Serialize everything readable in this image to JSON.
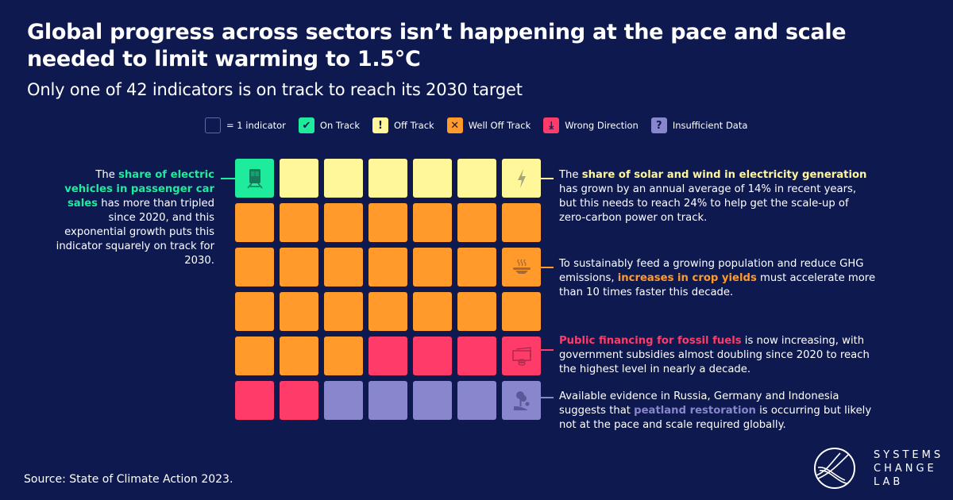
{
  "title": "Global progress across sectors isn’t happening at the pace and scale needed to limit warming to 1.5°C",
  "subtitle": "Only one of 42 indicators is on track to reach its 2030 target",
  "colors": {
    "on_track": "#1feb9c",
    "off_track": "#fff799",
    "well_off_track": "#ff9a2b",
    "wrong_direction": "#ff3b69",
    "insufficient_data": "#8886cc",
    "background": "#0e1a4f"
  },
  "legend": [
    {
      "key": "indicator",
      "label": "= 1 indicator",
      "glyph": ""
    },
    {
      "key": "on_track",
      "label": "On Track",
      "glyph": "✔"
    },
    {
      "key": "off_track",
      "label": "Off Track",
      "glyph": "!"
    },
    {
      "key": "well_off_track",
      "label": "Well Off Track",
      "glyph": "✕"
    },
    {
      "key": "wrong_direction",
      "label": "Wrong Direction",
      "glyph": "⤓"
    },
    {
      "key": "insufficient_data",
      "label": "Insufficient Data",
      "glyph": "?"
    }
  ],
  "grid": [
    [
      "on_track",
      "off_track",
      "off_track",
      "off_track",
      "off_track",
      "off_track",
      "off_track"
    ],
    [
      "well_off_track",
      "well_off_track",
      "well_off_track",
      "well_off_track",
      "well_off_track",
      "well_off_track",
      "well_off_track"
    ],
    [
      "well_off_track",
      "well_off_track",
      "well_off_track",
      "well_off_track",
      "well_off_track",
      "well_off_track",
      "well_off_track"
    ],
    [
      "well_off_track",
      "well_off_track",
      "well_off_track",
      "well_off_track",
      "well_off_track",
      "well_off_track",
      "well_off_track"
    ],
    [
      "well_off_track",
      "well_off_track",
      "well_off_track",
      "wrong_direction",
      "wrong_direction",
      "wrong_direction",
      "wrong_direction"
    ],
    [
      "wrong_direction",
      "wrong_direction",
      "insufficient_data",
      "insufficient_data",
      "insufficient_data",
      "insufficient_data",
      "insufficient_data"
    ]
  ],
  "icons": [
    {
      "row": 0,
      "col": 0,
      "name": "train-icon"
    },
    {
      "row": 0,
      "col": 6,
      "name": "lightning-icon"
    },
    {
      "row": 2,
      "col": 6,
      "name": "food-bowl-icon"
    },
    {
      "row": 4,
      "col": 6,
      "name": "money-icon"
    },
    {
      "row": 5,
      "col": 6,
      "name": "tree-icon"
    }
  ],
  "annotations": [
    {
      "side": "left",
      "status": "on_track",
      "parts": [
        {
          "t": "The "
        },
        {
          "t": "share of electric vehicles in passenger car sales",
          "hl": 1
        },
        {
          "t": " has more than tripled since 2020, and this exponential growth puts this indicator squarely on track for 2030."
        }
      ]
    },
    {
      "side": "right",
      "status": "off_track",
      "parts": [
        {
          "t": "The "
        },
        {
          "t": "share of solar and wind in electricity generation",
          "hl": 1
        },
        {
          "t": " has grown by an annual average of 14% in recent years, but this needs to reach 24% to help get the scale-up of zero-carbon power on track."
        }
      ]
    },
    {
      "side": "right",
      "status": "well_off_track",
      "parts": [
        {
          "t": "To sustainably feed a growing population and reduce GHG emissions, "
        },
        {
          "t": "increases in crop yields",
          "hl": 1
        },
        {
          "t": " must accelerate more than 10 times faster this decade."
        }
      ]
    },
    {
      "side": "right",
      "status": "wrong_direction",
      "parts": [
        {
          "t": "Public financing for fossil fuels",
          "hl": 1
        },
        {
          "t": " is now increasing, with government subsidies almost doubling since 2020 to reach the highest level in nearly a decade."
        }
      ]
    },
    {
      "side": "right",
      "status": "insufficient_data",
      "parts": [
        {
          "t": "Available evidence in Russia, Germany and Indonesia suggests that "
        },
        {
          "t": "peatland restoration",
          "hl": 1
        },
        {
          "t": " is occurring but likely not at the pace and scale required globally."
        }
      ]
    }
  ],
  "source": "Source: State of Climate Action 2023.",
  "logo": {
    "line1": "SYSTEMS",
    "line2": "CHANGE",
    "line3": "LAB"
  }
}
